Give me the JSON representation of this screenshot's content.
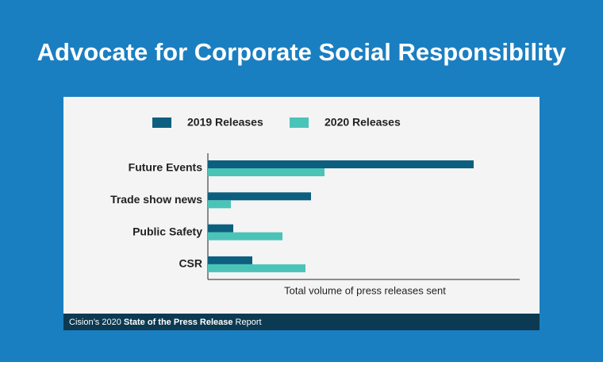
{
  "chart_data": {
    "type": "hbar",
    "title": "Advocate for Corporate Social Responsibility",
    "categories": [
      "Future Events",
      "Trade show news",
      "Public Safety",
      "CSR"
    ],
    "series": [
      {
        "name": "2019 Releases",
        "color": "#0d5f7f",
        "values": [
          335,
          130,
          32,
          56
        ]
      },
      {
        "name": "2020 Releases",
        "color": "#4bc4b8",
        "values": [
          147,
          29,
          94,
          123
        ]
      }
    ],
    "xlim": [
      0,
      393
    ],
    "x_label": "Total volume of press releases sent",
    "legend": "top",
    "footer": {
      "prefix": "Cision’s 2020 ",
      "bold": "State of the Press Release",
      "suffix": " Report"
    }
  }
}
